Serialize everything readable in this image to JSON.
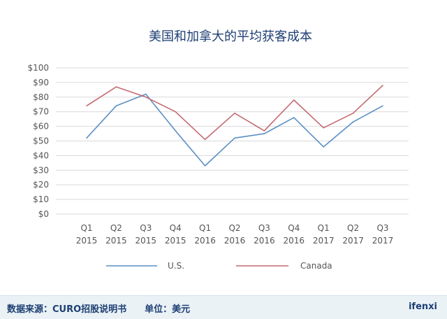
{
  "chart_data": {
    "type": "line",
    "title": "美国和加拿大的平均获客成本",
    "categories": [
      "Q1 2015",
      "Q2 2015",
      "Q3 2015",
      "Q4 2015",
      "Q1 2016",
      "Q2 2016",
      "Q3 2016",
      "Q4 2016",
      "Q1 2017",
      "Q2 2017",
      "Q3 2017"
    ],
    "category_lines": [
      [
        "Q1",
        "2015"
      ],
      [
        "Q2",
        "2015"
      ],
      [
        "Q3",
        "2015"
      ],
      [
        "Q4",
        "2015"
      ],
      [
        "Q1",
        "2016"
      ],
      [
        "Q2",
        "2016"
      ],
      [
        "Q3",
        "2016"
      ],
      [
        "Q4",
        "2016"
      ],
      [
        "Q1",
        "2017"
      ],
      [
        "Q2",
        "2017"
      ],
      [
        "Q3",
        "2017"
      ]
    ],
    "y_ticks": [
      0,
      10,
      20,
      30,
      40,
      50,
      60,
      70,
      80,
      90,
      100
    ],
    "y_tick_labels": [
      "$0",
      "$10",
      "$20",
      "$30",
      "$40",
      "$50",
      "$60",
      "$70",
      "$80",
      "$90",
      "$100"
    ],
    "ylim": [
      0,
      100
    ],
    "grid": true,
    "legend_position": "bottom",
    "series": [
      {
        "name": "U.S.",
        "color": "#5b8fc4",
        "values": [
          52,
          74,
          82,
          57,
          33,
          52,
          55,
          66,
          46,
          63,
          74
        ]
      },
      {
        "name": "Canada",
        "color": "#c46a72",
        "values": [
          74,
          87,
          80,
          70,
          51,
          69,
          57,
          78,
          59,
          69,
          88
        ]
      }
    ]
  },
  "footer": {
    "source": "数据来源：CURO招股说明书　　单位：美元",
    "brand": "ifenxi"
  },
  "colors": {
    "grid": "#d9d9d9",
    "axis_text": "#555555",
    "title": "#1e3f73",
    "footer_bg": "#eaf2f6"
  }
}
